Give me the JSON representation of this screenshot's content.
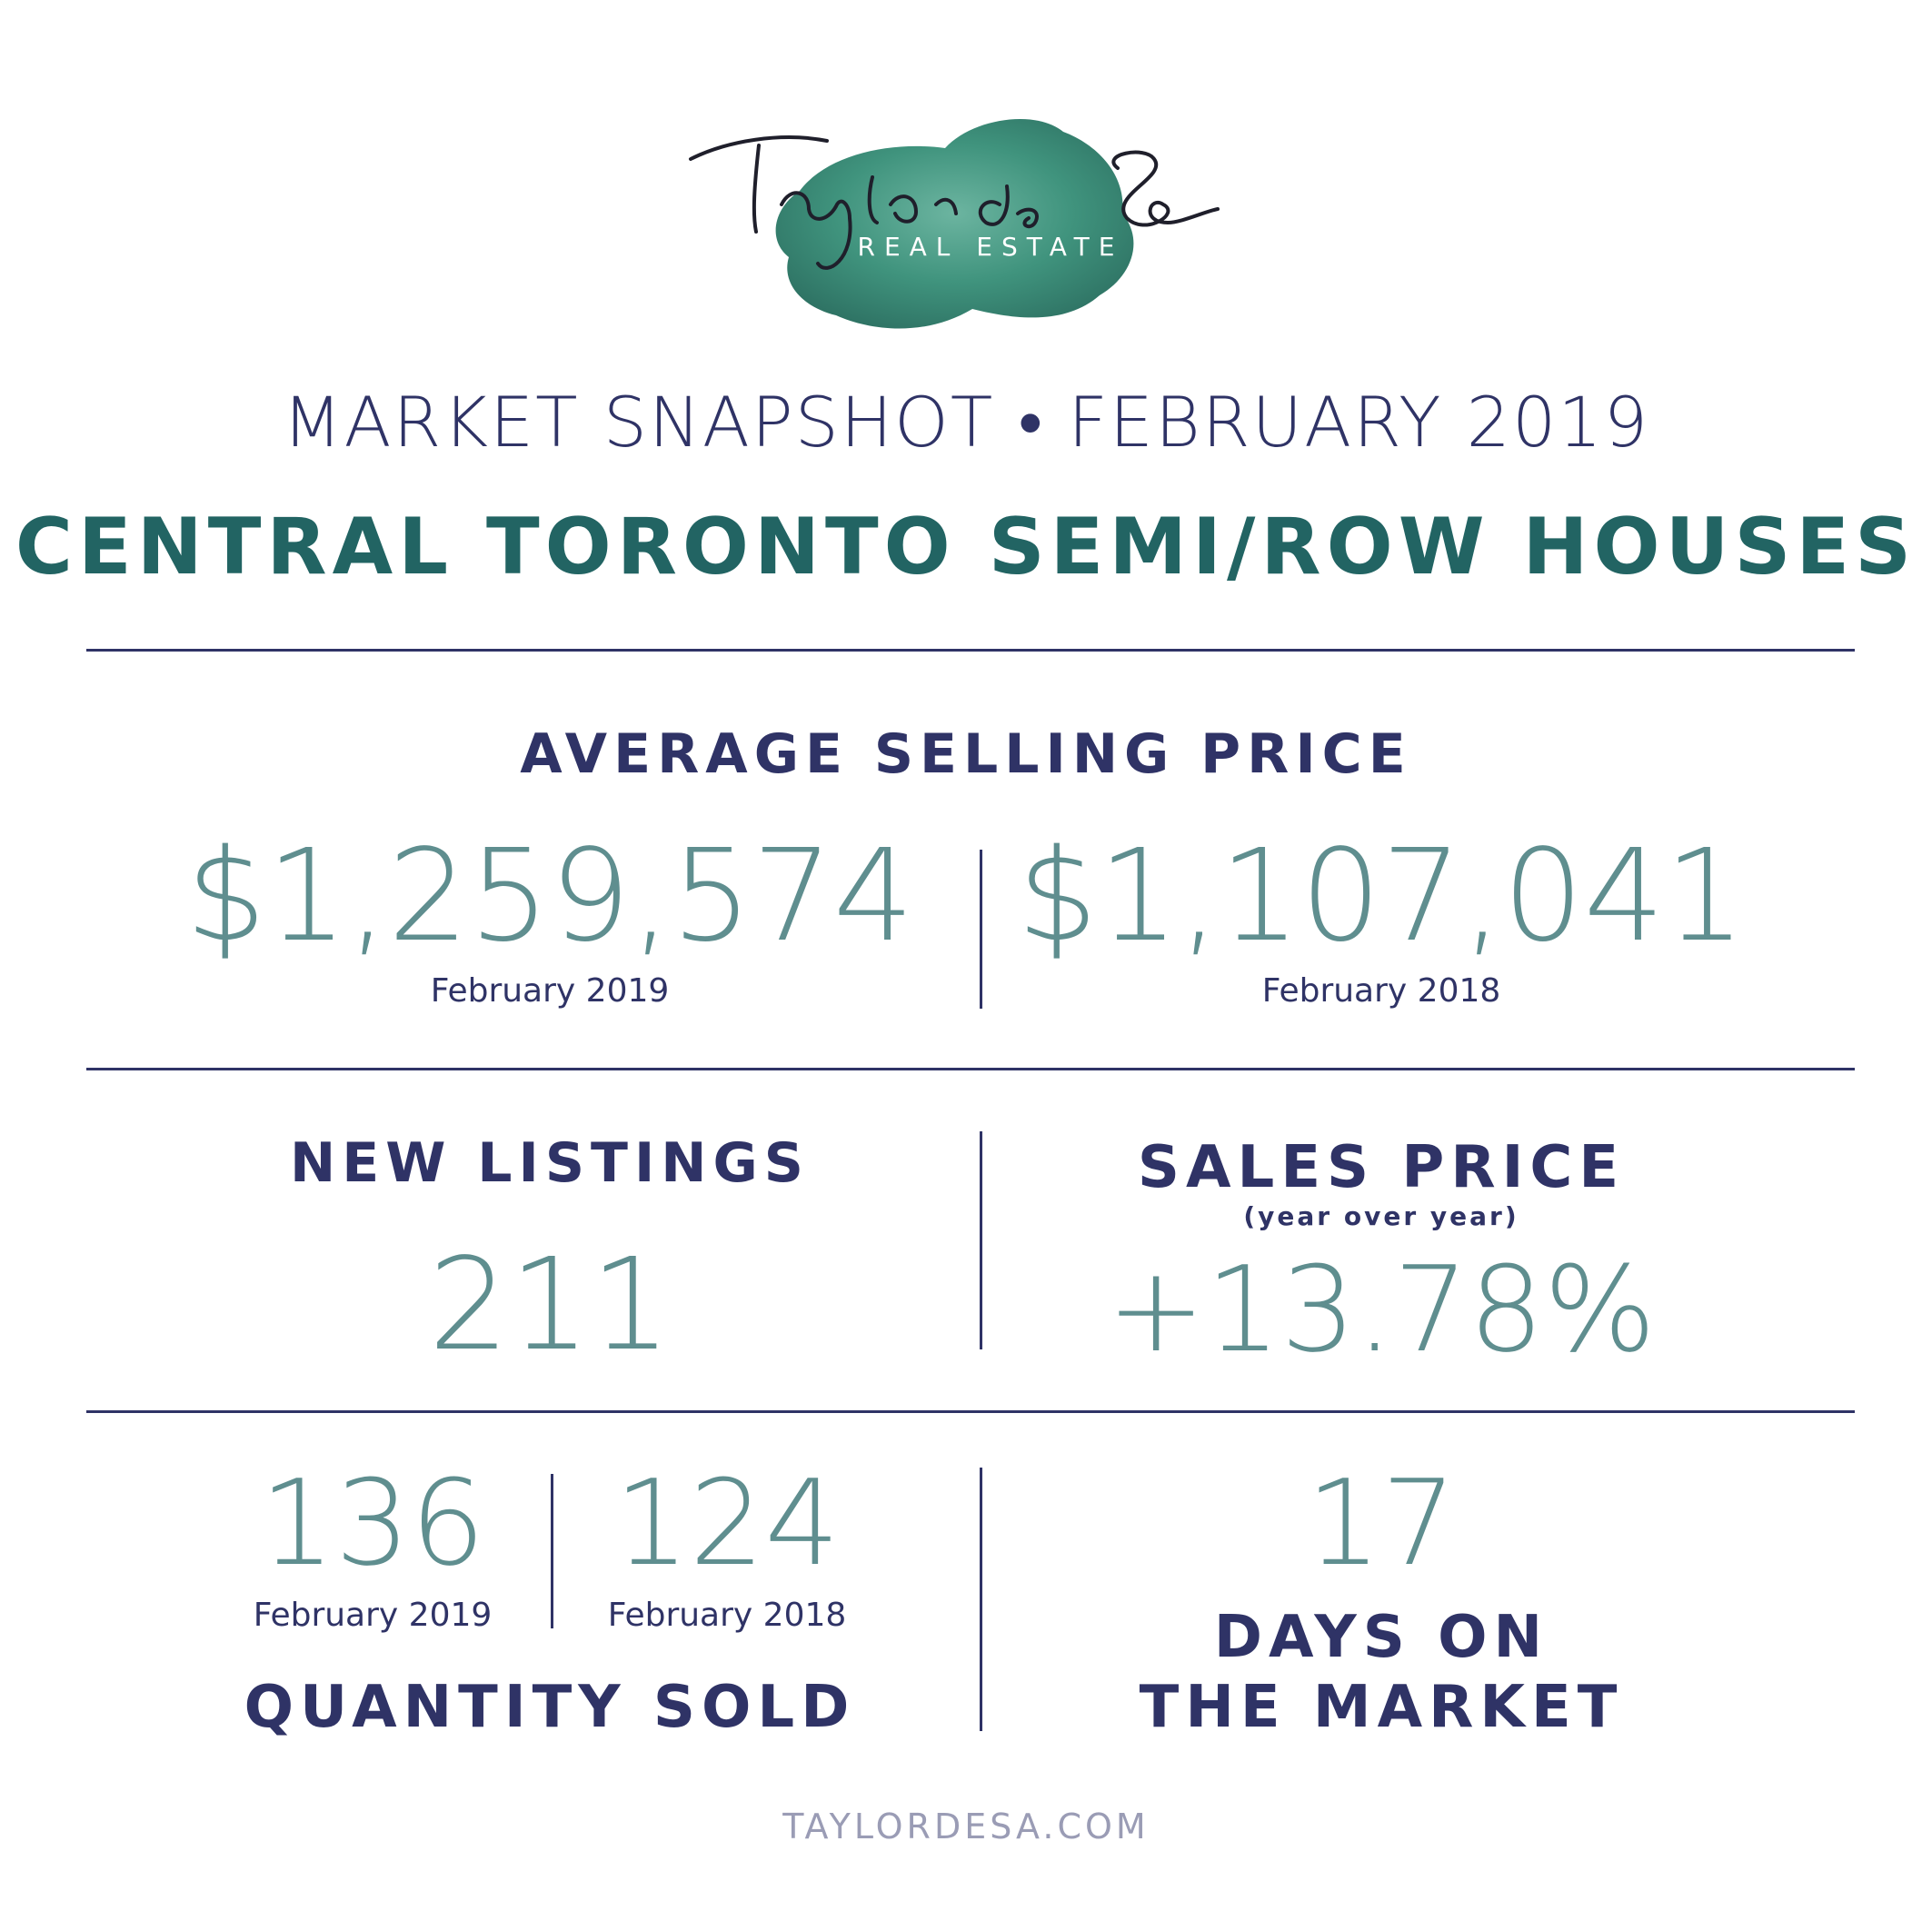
{
  "logo": {
    "script_text": "Taylor de Sa",
    "subtitle": "REAL ESTATE"
  },
  "header": {
    "snapshot_title": "MARKET SNAPSHOT • FEBRUARY 2019",
    "main_title": "CENTRAL TORONTO SEMI/ROW HOUSES"
  },
  "average_selling_price": {
    "heading": "AVERAGE SELLING PRICE",
    "current": {
      "value": "$1,259,574",
      "label": "February 2019"
    },
    "previous": {
      "value": "$1,107,041",
      "label": "February 2018"
    }
  },
  "new_listings": {
    "heading": "NEW LISTINGS",
    "value": "211"
  },
  "sales_price": {
    "heading": "SALES PRICE",
    "subheading": "(year over year)",
    "value": "+13.78%"
  },
  "quantity_sold": {
    "heading": "QUANTITY SOLD",
    "current": {
      "value": "136",
      "label": "February 2019"
    },
    "previous": {
      "value": "124",
      "label": "February 2018"
    }
  },
  "days_on_market": {
    "value": "17",
    "heading_line1": "DAYS ON",
    "heading_line2": "THE MARKET"
  },
  "footer": {
    "website": "TAYLORDESA.COM"
  },
  "colors": {
    "navy": "#2f3366",
    "teal": "#226463",
    "muted_teal": "#5f8e8f",
    "watercolor": "#2f8a72",
    "footer_grey": "#9a9cb5"
  }
}
